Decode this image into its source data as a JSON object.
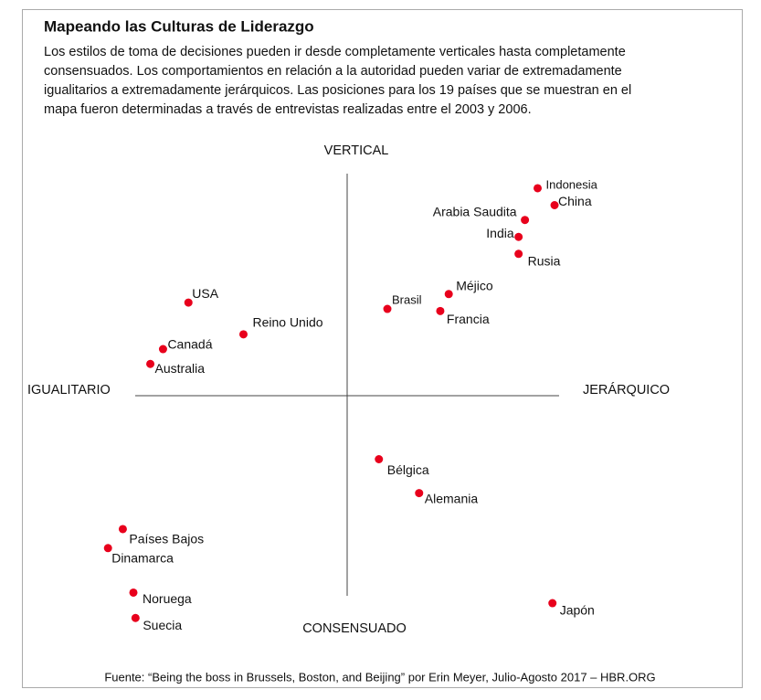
{
  "chart_data": {
    "type": "scatter",
    "title": "Mapeando las Culturas de Liderazgo",
    "subtitle": [
      "Los estilos de toma de decisiones pueden ir desde completamente verticales hasta completamente",
      "consensuados. Los comportamientos en relación a la autoridad pueden variar de extremadamente",
      "igualitarios a extremadamente jerárquicos. Las posiciones para los 19 países que se muestran en el",
      "mapa fueron determinadas a través de entrevistas realizadas entre el 2003 y 2006."
    ],
    "axis_labels": {
      "top": "VERTICAL",
      "bottom": "CONSENSUADO",
      "left": "IGUALITARIO",
      "right": "JERÁRQUICO"
    },
    "source": "Fuente: “Being the boss in Brussels, Boston, and Beijing” por Erin Meyer, Julio-Agosto 2017 – HBR.ORG",
    "color": "#e8001c",
    "xlim": [
      -12,
      12
    ],
    "ylim": [
      -12,
      12
    ],
    "labels": [
      "Indonesia",
      "China",
      "Arabia Saudita",
      "India",
      "Rusia",
      "Méjico",
      "Brasil",
      "Francia",
      "USA",
      "Reino Unido",
      "Canadá",
      "Australia",
      "Bélgica",
      "Alemania",
      "Países Bajos",
      "Dinamarca",
      "Noruega",
      "Suecia",
      "Japón"
    ],
    "x": [
      9.0,
      9.8,
      8.4,
      8.1,
      8.1,
      4.8,
      1.9,
      4.4,
      -7.5,
      -4.9,
      -8.7,
      -9.3,
      1.5,
      3.4,
      -10.6,
      -11.3,
      -10.1,
      -10.0,
      9.7
    ],
    "y": [
      9.8,
      9.0,
      8.3,
      7.5,
      6.7,
      4.8,
      4.1,
      4.0,
      4.4,
      2.9,
      2.2,
      1.5,
      -3.0,
      -4.6,
      -6.3,
      -7.2,
      -9.3,
      -10.5,
      -9.8
    ]
  }
}
